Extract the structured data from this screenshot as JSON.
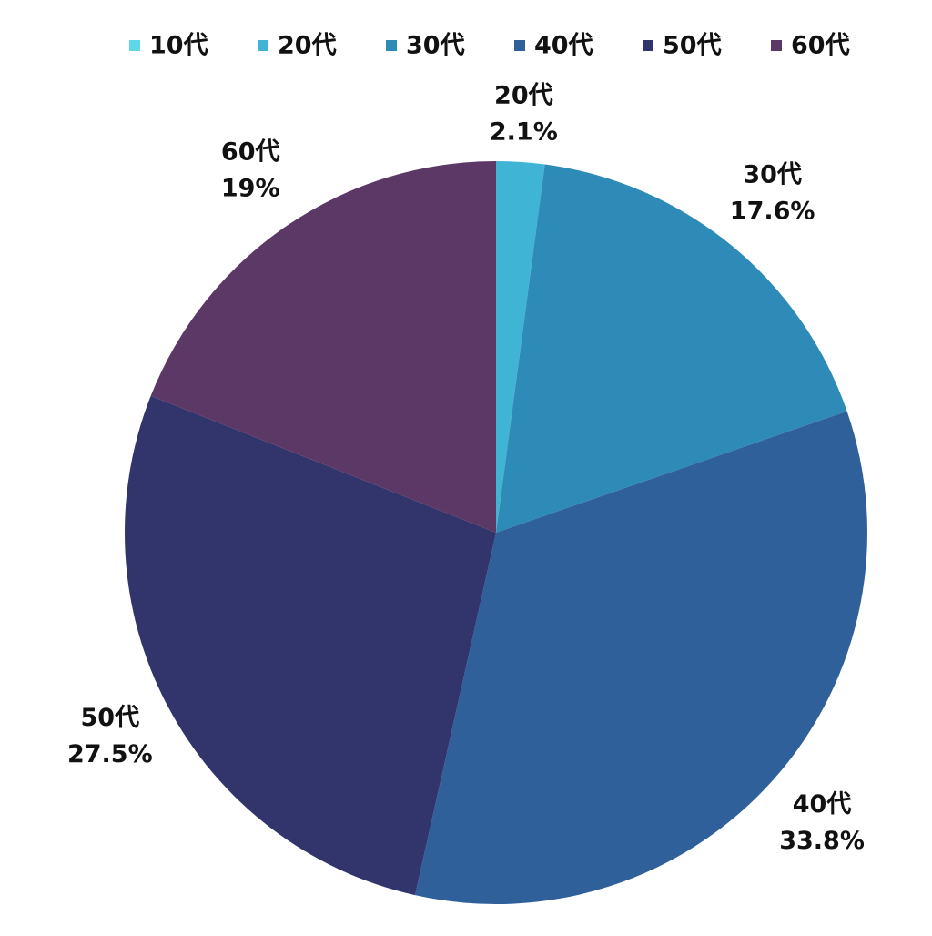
{
  "chart_data": {
    "type": "pie",
    "categories": [
      "10代",
      "20代",
      "30代",
      "40代",
      "50代",
      "60代"
    ],
    "values": [
      0,
      2.1,
      17.6,
      33.8,
      27.5,
      19
    ],
    "value_labels": [
      null,
      "2.1%",
      "17.6%",
      "33.8%",
      "27.5%",
      "19%"
    ],
    "colors": [
      "#5fd8e6",
      "#3fb4d4",
      "#2e8bb8",
      "#30609a",
      "#31356c",
      "#5c3866"
    ],
    "legend": "top"
  }
}
